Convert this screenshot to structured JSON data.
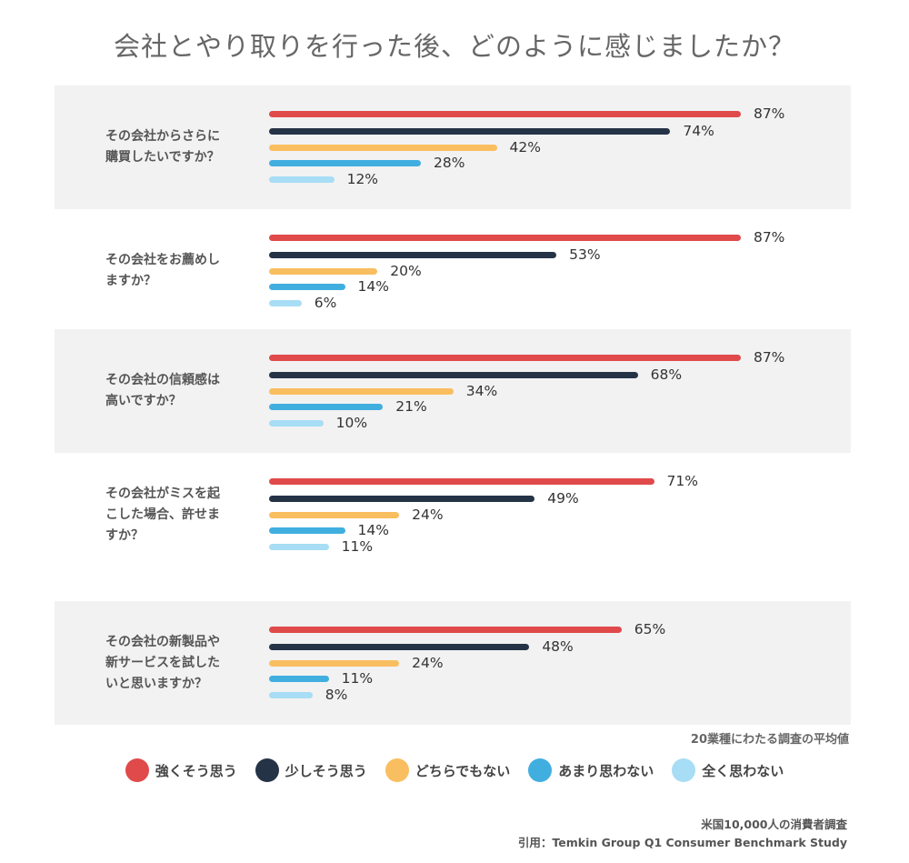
{
  "title": "会社とやり取りを行った後、どのように感じましたか？",
  "note": "20業種にわたる調査の平均値",
  "footer": {
    "line1": "米国10,000人の消費者調査",
    "line2": "引用：Temkin Group Q1 Consumer Benchmark Study"
  },
  "colors": [
    "#e04a4a",
    "#253347",
    "#f9be5f",
    "#41aee0",
    "#a7ddf5"
  ],
  "chart_data": {
    "type": "bar",
    "orientation": "horizontal",
    "categories": [
      "その会社からさらに\n購買したいですか？",
      "その会社をお薦めし\nますか？",
      "その会社の信頼感は\n高いですか？",
      "その会社がミスを起\nこした場合、許せま\nすか？",
      "その会社の新製品や\n新サービスを試した\nいと思いますか？"
    ],
    "series": [
      {
        "name": "強くそう思う",
        "values": [
          87,
          87,
          87,
          71,
          65
        ]
      },
      {
        "name": "少しそう思う",
        "values": [
          74,
          53,
          68,
          49,
          48
        ]
      },
      {
        "name": "どちらでもない",
        "values": [
          42,
          20,
          34,
          24,
          24
        ]
      },
      {
        "name": "あまり思わない",
        "values": [
          28,
          14,
          21,
          14,
          11
        ]
      },
      {
        "name": "全く思わない",
        "values": [
          12,
          6,
          10,
          11,
          8
        ]
      }
    ],
    "value_suffix": "%",
    "xlim": [
      0,
      100
    ],
    "legend": "bottom"
  }
}
